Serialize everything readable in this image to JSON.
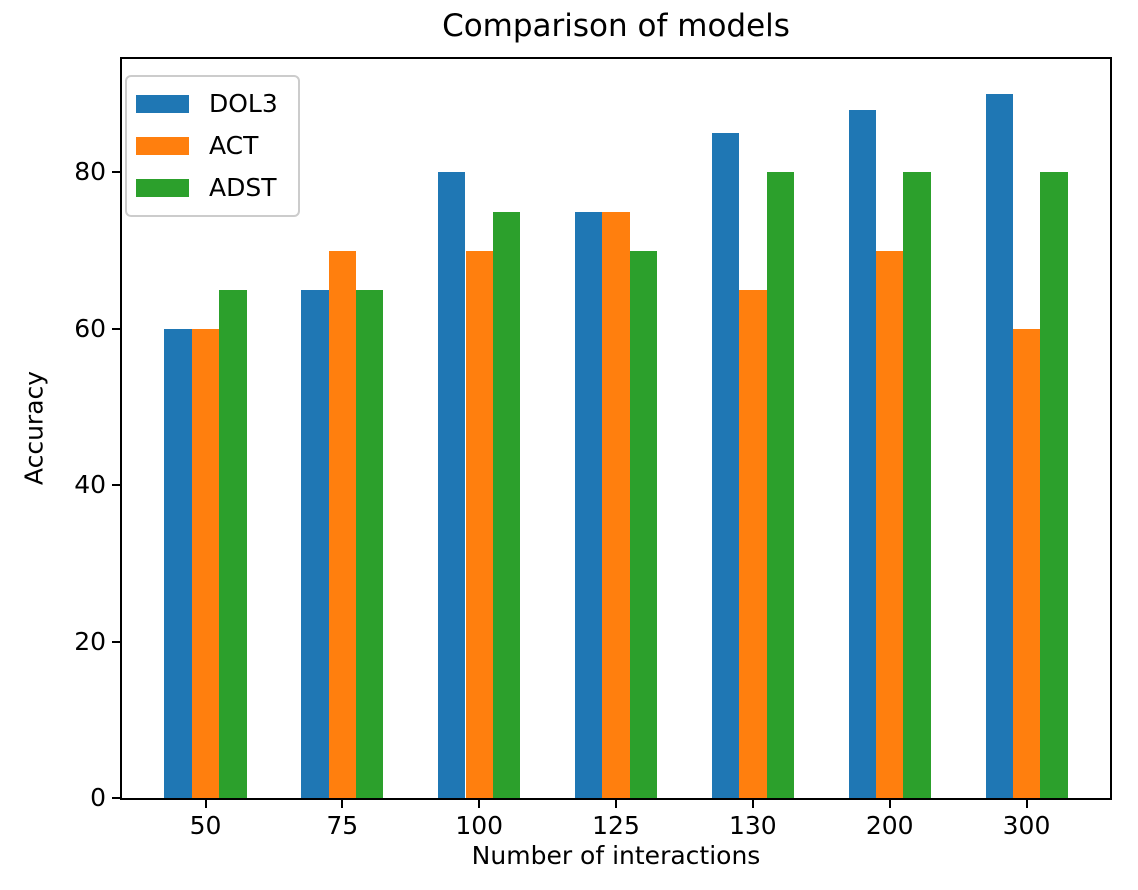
{
  "chart_data": {
    "type": "bar",
    "title": "Comparison of models",
    "xlabel": "Number of interactions",
    "ylabel": "Accuracy",
    "categories": [
      "50",
      "75",
      "100",
      "125",
      "130",
      "200",
      "300"
    ],
    "series": [
      {
        "name": "DOL3",
        "color": "#1f77b4",
        "values": [
          60,
          65,
          80,
          75,
          85,
          88,
          90
        ]
      },
      {
        "name": "ACT",
        "color": "#ff7f0e",
        "values": [
          60,
          70,
          70,
          75,
          65,
          70,
          60
        ]
      },
      {
        "name": "ADST",
        "color": "#2ca02c",
        "values": [
          65,
          65,
          75,
          70,
          80,
          80,
          80
        ]
      }
    ],
    "yticks": [
      0,
      20,
      40,
      60,
      80
    ],
    "ylim": [
      0,
      94.5
    ],
    "xlim": [
      -0.61,
      6.61
    ],
    "bar_width": 0.2,
    "legend_position": "upper left",
    "grid": false,
    "spine_color": "#000000",
    "text_color": "#000000"
  }
}
